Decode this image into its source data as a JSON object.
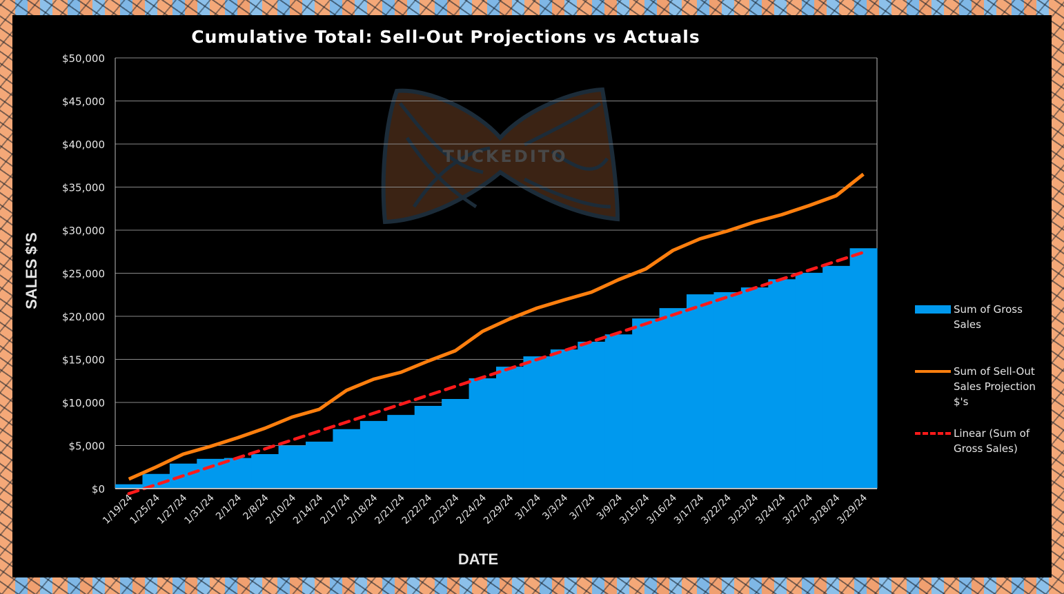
{
  "chart_data": {
    "type": "bar",
    "title": "Cumulative Total: Sell-Out Projections vs Actuals",
    "xlabel": "DATE",
    "ylabel": "SALES $'S",
    "ylim": [
      0,
      50000
    ],
    "yticks": [
      "$0",
      "$5,000",
      "$10,000",
      "$15,000",
      "$20,000",
      "$25,000",
      "$30,000",
      "$35,000",
      "$40,000",
      "$45,000",
      "$50,000"
    ],
    "grid": true,
    "legend_position": "right",
    "categories": [
      "1/19/24",
      "1/25/24",
      "1/27/24",
      "1/31/24",
      "2/1/24",
      "2/8/24",
      "2/10/24",
      "2/14/24",
      "2/17/24",
      "2/18/24",
      "2/21/24",
      "2/22/24",
      "2/23/24",
      "2/24/24",
      "2/29/24",
      "3/1/24",
      "3/3/24",
      "3/7/24",
      "3/9/24",
      "3/15/24",
      "3/16/24",
      "3/17/24",
      "3/22/24",
      "3/23/24",
      "3/24/24",
      "3/27/24",
      "3/28/24",
      "3/29/24"
    ],
    "series": [
      {
        "name": "Sum of Gross Sales",
        "type": "bar",
        "color": "#0099ee",
        "values": [
          500,
          1700,
          2900,
          3450,
          3550,
          4000,
          5000,
          5450,
          6900,
          7850,
          8550,
          9600,
          10400,
          12800,
          14150,
          15350,
          16150,
          17050,
          17900,
          19750,
          20950,
          22550,
          22800,
          23350,
          24300,
          25050,
          25850,
          27900
        ]
      },
      {
        "name": "Sum of Sell-Out Sales Projection $'s",
        "type": "line",
        "color": "#ff7f0e",
        "values": [
          1100,
          2500,
          4000,
          4900,
          5900,
          7000,
          8300,
          9200,
          11400,
          12700,
          13500,
          14800,
          16000,
          18250,
          19700,
          20950,
          21900,
          22800,
          24250,
          25500,
          27650,
          29000,
          29900,
          30950,
          31800,
          32850,
          34000,
          36500
        ]
      },
      {
        "name": "Linear (Sum of Gross Sales)",
        "type": "trendline",
        "color": "#ff1a1a",
        "of_series": 0
      }
    ],
    "legend": [
      "Sum of Gross Sales",
      "Sum of Sell-Out Sales Projection $'s",
      "Linear (Sum of Gross Sales)"
    ]
  },
  "watermark": {
    "logo_text": "TUCKEDITO"
  }
}
